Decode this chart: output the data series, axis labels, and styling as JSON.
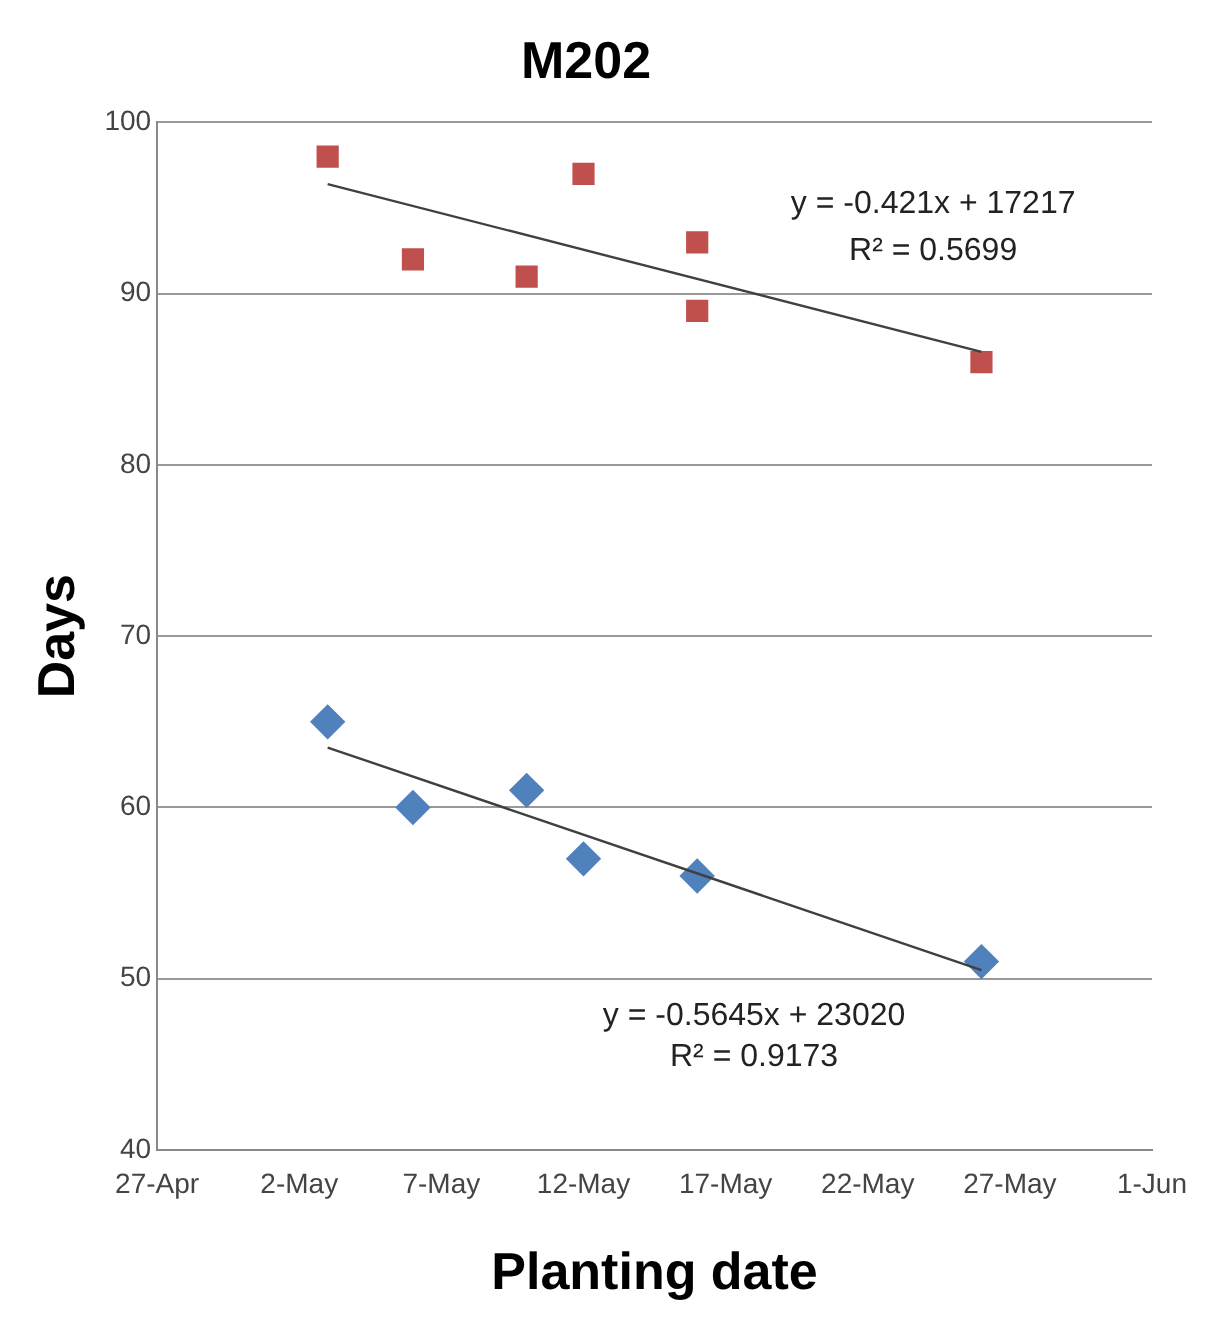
{
  "chart_data": {
    "type": "scatter",
    "title": "M202",
    "xlabel": "Planting date",
    "ylabel": "Days",
    "xlim": [
      "--04-27",
      "--06-01"
    ],
    "xticks": [
      {
        "value": "--04-27",
        "label": "27-Apr"
      },
      {
        "value": "--05-02",
        "label": "2-May"
      },
      {
        "value": "--05-07",
        "label": "7-May"
      },
      {
        "value": "--05-12",
        "label": "12-May"
      },
      {
        "value": "--05-17",
        "label": "17-May"
      },
      {
        "value": "--05-22",
        "label": "22-May"
      },
      {
        "value": "--05-27",
        "label": "27-May"
      },
      {
        "value": "--06-01",
        "label": "1-Jun"
      }
    ],
    "ylim": [
      40,
      100
    ],
    "yticks": [
      40,
      50,
      60,
      70,
      80,
      90,
      100
    ],
    "grid": "y",
    "legend": false,
    "series": [
      {
        "type": "scatter",
        "marker": "square",
        "color": "#c0504d",
        "x": [
          "--05-03",
          "--05-06",
          "--05-10",
          "--05-12",
          "--05-16",
          "--05-16",
          "--05-26"
        ],
        "values": [
          98,
          92,
          91,
          97,
          93,
          89,
          86
        ]
      },
      {
        "type": "scatter",
        "marker": "diamond",
        "color": "#4f81bd",
        "x": [
          "--05-03",
          "--05-06",
          "--05-10",
          "--05-12",
          "--05-16",
          "--05-26"
        ],
        "values": [
          65,
          60,
          61,
          57,
          56,
          51
        ]
      },
      {
        "type": "line",
        "marker": "none",
        "color": "#404040",
        "x": [
          "--05-03",
          "--05-26"
        ],
        "values": [
          96.4,
          86.6
        ]
      },
      {
        "type": "line",
        "marker": "none",
        "color": "#404040",
        "x": [
          "--05-03",
          "--05-26"
        ],
        "values": [
          63.5,
          50.5
        ]
      }
    ],
    "annotations": [
      "y = -0.421x + 17217",
      "R² = 0.5699",
      "y = -0.5645x + 23020",
      "R² = 0.9173"
    ]
  }
}
